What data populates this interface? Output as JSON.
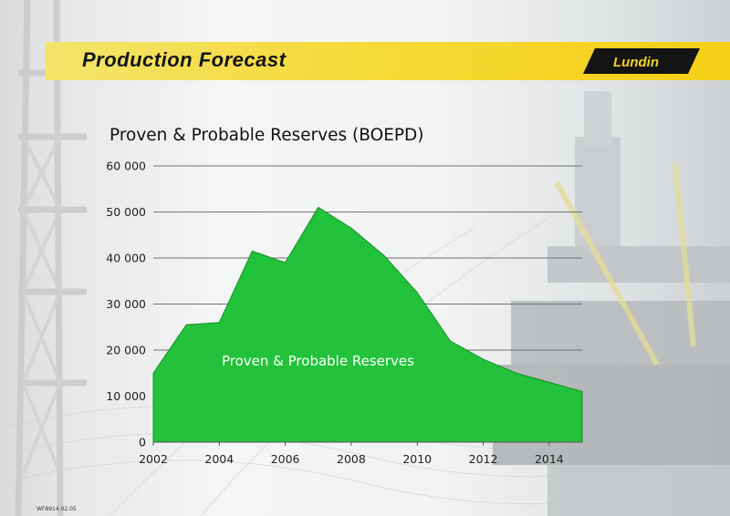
{
  "header": {
    "title": "Production Forecast",
    "logo_text": "Lundin",
    "bar_color": "#f5d62a"
  },
  "footer": {
    "code": "WF8914 02.05"
  },
  "chart_data": {
    "type": "area",
    "title": "Proven & Probable Reserves (BOEPD)",
    "xlabel": "",
    "ylabel": "",
    "x": [
      2002,
      2003,
      2004,
      2005,
      2006,
      2007,
      2008,
      2009,
      2010,
      2011,
      2012,
      2013,
      2014,
      2015
    ],
    "series": [
      {
        "name": "Proven & Probable Reserves",
        "values": [
          15000,
          25500,
          26000,
          41500,
          39000,
          51000,
          46500,
          40500,
          32500,
          22000,
          18000,
          15000,
          13000,
          11000
        ],
        "color": "#22c23a"
      }
    ],
    "xlim": [
      2002,
      2015
    ],
    "ylim": [
      0,
      60000
    ],
    "x_ticks": [
      "2002",
      "2004",
      "2006",
      "2008",
      "2010",
      "2012",
      "2014"
    ],
    "y_ticks": [
      "0",
      "10 000",
      "20 000",
      "30 000",
      "40 000",
      "50 000",
      "60 000"
    ],
    "grid": true,
    "legend": "none"
  }
}
